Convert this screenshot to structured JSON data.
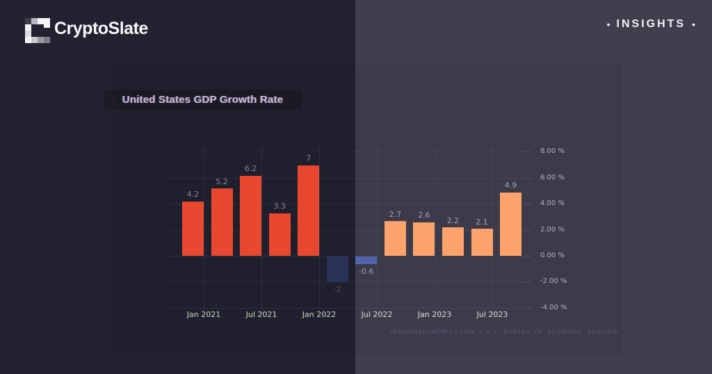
{
  "header": {
    "logo_text": "CryptoSlate",
    "insights": {
      "label": "INSIGHTS",
      "bullet": "•"
    }
  },
  "colors": {
    "bg_left": "#232130",
    "bg_right": "#413F4E",
    "bar_red": "#E8482F",
    "bar_peach": "#FBA36A",
    "bar_navy": "#2B3257",
    "bar_blue": "#5064AB",
    "x_label_left": "#B5C9B4",
    "x_label_right": "#CFCDD9",
    "y_label": "#B3B1BF",
    "title_text": "#C3C1D6",
    "source_text": "#565A78"
  },
  "chart_data": {
    "type": "bar",
    "title": "United States GDP Growth Rate",
    "unit": "%",
    "values": [
      4.2,
      5.2,
      6.2,
      3.3,
      7,
      -2,
      -0.6,
      2.7,
      2.6,
      2.2,
      2.1,
      4.9
    ],
    "value_labels": [
      "4.2",
      "5.2",
      "6.2",
      "3.3",
      "7",
      "-2",
      "-0.6",
      "2.7",
      "2.6",
      "2.2",
      "2.1",
      "4.9"
    ],
    "bar_colors": [
      "#E8482F",
      "#E8482F",
      "#E8482F",
      "#E8482F",
      "#E8482F",
      "#2B3257",
      "#5064AB",
      "#FBA36A",
      "#FBA36A",
      "#FBA36A",
      "#FBA36A",
      "#FBA36A"
    ],
    "label_colors": [
      "#87858F",
      "#87858F",
      "#87858F",
      "#87858F",
      "#87858F",
      "#4F4D5B",
      "#9AA0C2",
      "#A5A3B2",
      "#A5A3B2",
      "#A5A3B2",
      "#A5A3B2",
      "#A5A3B2"
    ],
    "x_tick_labels": [
      "Jan 2021",
      "Jul 2021",
      "Jan 2022",
      "Jul 2022",
      "Jan 2023",
      "Jul 2023"
    ],
    "y_ticks": [
      8,
      6,
      4,
      2,
      0,
      -2,
      -4
    ],
    "y_tick_labels": [
      "8.00 %",
      "6.00 %",
      "4.00 %",
      "2.00 %",
      "0.00 %",
      "-2.00 %",
      "-4.00 %"
    ],
    "ylim": [
      -4,
      8
    ],
    "grid": true,
    "legend": false,
    "source": "TRADINGECONOMICS.COM | U.S. BUREAU OF ECONOMIC ANALYSIS"
  }
}
